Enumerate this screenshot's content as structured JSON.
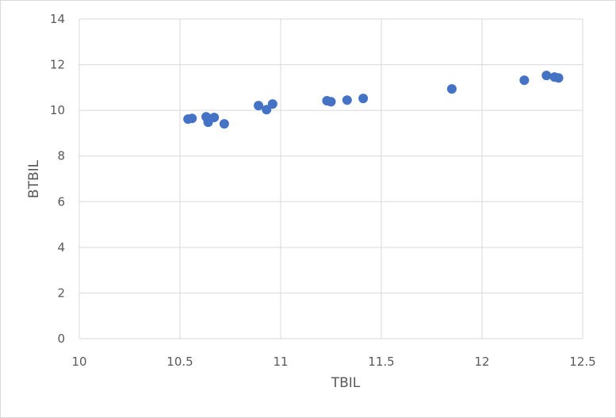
{
  "chart_data": {
    "type": "scatter",
    "title": "",
    "xlabel": "TBIL",
    "ylabel": "BTBIL",
    "xlim": [
      10,
      12.5
    ],
    "ylim": [
      0,
      14
    ],
    "x_ticks": [
      "10",
      "10.5",
      "11",
      "11.5",
      "12",
      "12.5"
    ],
    "y_ticks": [
      "0",
      "2",
      "4",
      "6",
      "8",
      "10",
      "12",
      "14"
    ],
    "grid": true,
    "legend": null,
    "marker_color": "#4472C4",
    "series": [
      {
        "name": "BTBIL",
        "points": [
          {
            "x": 10.54,
            "y": 9.62
          },
          {
            "x": 10.56,
            "y": 9.65
          },
          {
            "x": 10.63,
            "y": 9.72
          },
          {
            "x": 10.64,
            "y": 9.48
          },
          {
            "x": 10.67,
            "y": 9.69
          },
          {
            "x": 10.72,
            "y": 9.41
          },
          {
            "x": 10.89,
            "y": 10.21
          },
          {
            "x": 10.93,
            "y": 10.03
          },
          {
            "x": 10.96,
            "y": 10.28
          },
          {
            "x": 11.23,
            "y": 10.42
          },
          {
            "x": 11.25,
            "y": 10.38
          },
          {
            "x": 11.33,
            "y": 10.45
          },
          {
            "x": 11.41,
            "y": 10.52
          },
          {
            "x": 11.85,
            "y": 10.94
          },
          {
            "x": 12.21,
            "y": 11.32
          },
          {
            "x": 12.32,
            "y": 11.53
          },
          {
            "x": 12.36,
            "y": 11.46
          },
          {
            "x": 12.38,
            "y": 11.42
          }
        ]
      }
    ]
  }
}
